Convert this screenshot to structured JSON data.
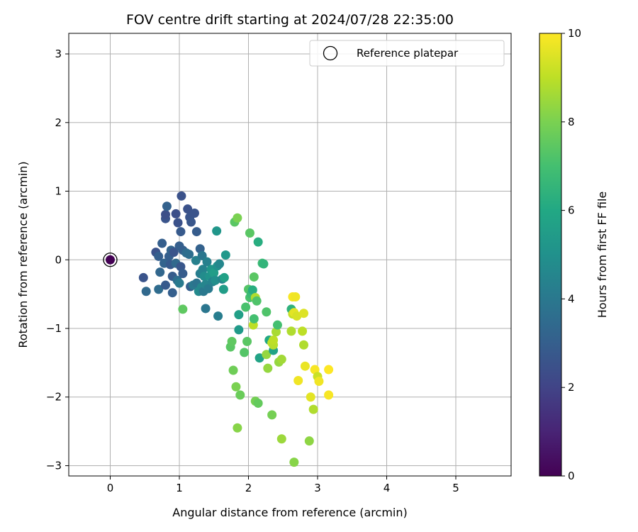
{
  "chart_data": {
    "type": "scatter",
    "title": "FOV centre drift starting at 2024/07/28 22:35:00",
    "xlabel": "Angular distance from reference (arcmin)",
    "ylabel": "Rotation from reference (arcmin)",
    "xlim": [
      -0.6,
      5.8
    ],
    "ylim": [
      -3.15,
      3.3
    ],
    "xticks": [
      0,
      1,
      2,
      3,
      4,
      5
    ],
    "xtick_labels": [
      "0",
      "1",
      "2",
      "3",
      "4",
      "5"
    ],
    "yticks": [
      -3,
      -2,
      -1,
      0,
      1,
      2,
      3
    ],
    "ytick_labels": [
      "−3",
      "−2",
      "−1",
      "0",
      "1",
      "2",
      "3"
    ],
    "grid": true,
    "colormap": "viridis",
    "colorbar": {
      "label": "Hours from first FF file",
      "range": [
        0,
        10
      ],
      "ticks": [
        0,
        2,
        4,
        6,
        8,
        10
      ],
      "tick_labels": [
        "0",
        "2",
        "4",
        "6",
        "8",
        "10"
      ]
    },
    "legend": {
      "placement": "top-right",
      "entries": [
        {
          "label": "Reference platepar",
          "marker": "open-circle"
        }
      ]
    },
    "reference_point": {
      "x": 0,
      "y": 0,
      "c": 0
    },
    "points": [
      {
        "x": 0.48,
        "y": -0.26,
        "c": 2.6
      },
      {
        "x": 0.52,
        "y": -0.46,
        "c": 3.4
      },
      {
        "x": 0.66,
        "y": 0.11,
        "c": 2.5
      },
      {
        "x": 0.7,
        "y": 0.05,
        "c": 3.0
      },
      {
        "x": 0.72,
        "y": -0.18,
        "c": 3.3
      },
      {
        "x": 0.7,
        "y": -0.43,
        "c": 3.5
      },
      {
        "x": 0.75,
        "y": 0.24,
        "c": 3.0
      },
      {
        "x": 0.78,
        "y": -0.05,
        "c": 3.2
      },
      {
        "x": 0.8,
        "y": -0.37,
        "c": 2.8
      },
      {
        "x": 0.8,
        "y": 0.6,
        "c": 2.6
      },
      {
        "x": 0.8,
        "y": 0.66,
        "c": 2.4
      },
      {
        "x": 0.82,
        "y": 0.78,
        "c": 3.1
      },
      {
        "x": 0.85,
        "y": 0.05,
        "c": 3.0
      },
      {
        "x": 0.87,
        "y": -0.07,
        "c": 2.8
      },
      {
        "x": 0.88,
        "y": 0.14,
        "c": 3.2
      },
      {
        "x": 0.9,
        "y": -0.24,
        "c": 2.9
      },
      {
        "x": 0.9,
        "y": -0.48,
        "c": 3.0
      },
      {
        "x": 0.92,
        "y": 0.11,
        "c": 2.6
      },
      {
        "x": 0.95,
        "y": -0.05,
        "c": 3.4
      },
      {
        "x": 0.95,
        "y": 0.67,
        "c": 2.4
      },
      {
        "x": 0.97,
        "y": -0.3,
        "c": 3.6
      },
      {
        "x": 0.98,
        "y": 0.54,
        "c": 2.5
      },
      {
        "x": 1.0,
        "y": 0.2,
        "c": 3.0
      },
      {
        "x": 1.0,
        "y": -0.34,
        "c": 4.1
      },
      {
        "x": 1.02,
        "y": -0.1,
        "c": 2.7
      },
      {
        "x": 1.02,
        "y": 0.41,
        "c": 2.8
      },
      {
        "x": 1.03,
        "y": 0.93,
        "c": 2.5
      },
      {
        "x": 1.05,
        "y": -0.2,
        "c": 2.9
      },
      {
        "x": 1.05,
        "y": 0.14,
        "c": 3.0
      },
      {
        "x": 1.05,
        "y": -0.72,
        "c": 7.5
      },
      {
        "x": 1.1,
        "y": 0.1,
        "c": 3.5
      },
      {
        "x": 1.12,
        "y": 0.74,
        "c": 2.5
      },
      {
        "x": 1.14,
        "y": 0.08,
        "c": 3.6
      },
      {
        "x": 1.15,
        "y": 0.62,
        "c": 2.6
      },
      {
        "x": 1.16,
        "y": -0.39,
        "c": 3.0
      },
      {
        "x": 1.17,
        "y": 0.55,
        "c": 2.7
      },
      {
        "x": 1.2,
        "y": -0.37,
        "c": 4.0
      },
      {
        "x": 1.22,
        "y": 0.68,
        "c": 2.6
      },
      {
        "x": 1.24,
        "y": -0.01,
        "c": 4.3
      },
      {
        "x": 1.25,
        "y": -0.34,
        "c": 3.8
      },
      {
        "x": 1.25,
        "y": 0.41,
        "c": 2.9
      },
      {
        "x": 1.28,
        "y": -0.46,
        "c": 4.7
      },
      {
        "x": 1.3,
        "y": 0.16,
        "c": 3.1
      },
      {
        "x": 1.3,
        "y": -0.2,
        "c": 4.2
      },
      {
        "x": 1.32,
        "y": -0.4,
        "c": 4.6
      },
      {
        "x": 1.33,
        "y": 0.06,
        "c": 3.9
      },
      {
        "x": 1.34,
        "y": -0.14,
        "c": 4.4
      },
      {
        "x": 1.35,
        "y": -0.46,
        "c": 4.0
      },
      {
        "x": 1.36,
        "y": -0.24,
        "c": 4.8
      },
      {
        "x": 1.38,
        "y": -0.71,
        "c": 3.9
      },
      {
        "x": 1.38,
        "y": -0.36,
        "c": 4.5
      },
      {
        "x": 1.4,
        "y": -0.03,
        "c": 4.3
      },
      {
        "x": 1.42,
        "y": -0.42,
        "c": 4.1
      },
      {
        "x": 1.44,
        "y": -0.24,
        "c": 5.1
      },
      {
        "x": 1.46,
        "y": -0.14,
        "c": 5.2
      },
      {
        "x": 1.48,
        "y": -0.32,
        "c": 4.4
      },
      {
        "x": 1.5,
        "y": -0.19,
        "c": 5.5
      },
      {
        "x": 1.52,
        "y": -0.3,
        "c": 4.9
      },
      {
        "x": 1.54,
        "y": 0.42,
        "c": 5.2
      },
      {
        "x": 1.55,
        "y": -0.09,
        "c": 5.0
      },
      {
        "x": 1.56,
        "y": -0.82,
        "c": 4.2
      },
      {
        "x": 1.58,
        "y": -0.06,
        "c": 4.6
      },
      {
        "x": 1.62,
        "y": -0.28,
        "c": 4.5
      },
      {
        "x": 1.64,
        "y": -0.43,
        "c": 5.5
      },
      {
        "x": 1.65,
        "y": -0.26,
        "c": 5.7
      },
      {
        "x": 1.67,
        "y": 0.07,
        "c": 5.3
      },
      {
        "x": 1.74,
        "y": -1.27,
        "c": 7.4
      },
      {
        "x": 1.76,
        "y": -1.19,
        "c": 7.5
      },
      {
        "x": 1.78,
        "y": -1.61,
        "c": 7.8
      },
      {
        "x": 1.8,
        "y": 0.55,
        "c": 7.4
      },
      {
        "x": 1.82,
        "y": -1.85,
        "c": 8.0
      },
      {
        "x": 1.84,
        "y": -2.45,
        "c": 8.2
      },
      {
        "x": 1.84,
        "y": 0.61,
        "c": 8.0
      },
      {
        "x": 1.86,
        "y": -0.8,
        "c": 5.6
      },
      {
        "x": 1.86,
        "y": -1.02,
        "c": 5.4
      },
      {
        "x": 1.88,
        "y": -1.97,
        "c": 7.7
      },
      {
        "x": 1.94,
        "y": -1.35,
        "c": 7.3
      },
      {
        "x": 1.96,
        "y": -0.69,
        "c": 7.1
      },
      {
        "x": 1.98,
        "y": -1.19,
        "c": 7.4
      },
      {
        "x": 2.0,
        "y": -0.43,
        "c": 7.3
      },
      {
        "x": 2.02,
        "y": 0.39,
        "c": 7.4
      },
      {
        "x": 2.02,
        "y": -0.55,
        "c": 7.1
      },
      {
        "x": 2.04,
        "y": -0.5,
        "c": 6.8
      },
      {
        "x": 2.06,
        "y": -0.44,
        "c": 6.2
      },
      {
        "x": 2.07,
        "y": -0.95,
        "c": 9.0
      },
      {
        "x": 2.08,
        "y": -0.86,
        "c": 7.0
      },
      {
        "x": 2.08,
        "y": -0.25,
        "c": 7.4
      },
      {
        "x": 2.1,
        "y": -2.06,
        "c": 7.9
      },
      {
        "x": 2.1,
        "y": -0.55,
        "c": 8.8
      },
      {
        "x": 2.12,
        "y": -0.6,
        "c": 7.2
      },
      {
        "x": 2.14,
        "y": -2.09,
        "c": 7.6
      },
      {
        "x": 2.14,
        "y": 0.26,
        "c": 6.2
      },
      {
        "x": 2.16,
        "y": -1.43,
        "c": 5.8
      },
      {
        "x": 2.2,
        "y": -0.05,
        "c": 6.8
      },
      {
        "x": 2.22,
        "y": -0.06,
        "c": 6.5
      },
      {
        "x": 2.26,
        "y": -0.76,
        "c": 7.2
      },
      {
        "x": 2.26,
        "y": -1.38,
        "c": 8.4
      },
      {
        "x": 2.28,
        "y": -1.58,
        "c": 8.4
      },
      {
        "x": 2.3,
        "y": -1.17,
        "c": 6.0
      },
      {
        "x": 2.34,
        "y": -1.21,
        "c": 9.1
      },
      {
        "x": 2.34,
        "y": -2.26,
        "c": 7.9
      },
      {
        "x": 2.36,
        "y": -1.32,
        "c": 5.8
      },
      {
        "x": 2.36,
        "y": -1.24,
        "c": 8.9
      },
      {
        "x": 2.36,
        "y": -1.17,
        "c": 9.0
      },
      {
        "x": 2.4,
        "y": -1.05,
        "c": 8.7
      },
      {
        "x": 2.42,
        "y": -0.95,
        "c": 7.0
      },
      {
        "x": 2.44,
        "y": -1.49,
        "c": 8.4
      },
      {
        "x": 2.48,
        "y": -1.45,
        "c": 8.6
      },
      {
        "x": 2.48,
        "y": -2.61,
        "c": 8.5
      },
      {
        "x": 2.62,
        "y": -0.72,
        "c": 6.4
      },
      {
        "x": 2.62,
        "y": -1.04,
        "c": 8.8
      },
      {
        "x": 2.64,
        "y": -0.54,
        "c": 9.9
      },
      {
        "x": 2.64,
        "y": -0.79,
        "c": 9.1
      },
      {
        "x": 2.66,
        "y": -0.77,
        "c": 9.6
      },
      {
        "x": 2.68,
        "y": -0.54,
        "c": 9.8
      },
      {
        "x": 2.7,
        "y": -0.82,
        "c": 9.4
      },
      {
        "x": 2.72,
        "y": -1.76,
        "c": 9.8
      },
      {
        "x": 2.78,
        "y": -1.04,
        "c": 9.0
      },
      {
        "x": 2.8,
        "y": -0.78,
        "c": 9.5
      },
      {
        "x": 2.8,
        "y": -1.24,
        "c": 8.8
      },
      {
        "x": 2.82,
        "y": -1.55,
        "c": 9.7
      },
      {
        "x": 2.66,
        "y": -2.95,
        "c": 8.2
      },
      {
        "x": 2.88,
        "y": -2.64,
        "c": 8.3
      },
      {
        "x": 2.9,
        "y": -2.0,
        "c": 9.6
      },
      {
        "x": 2.94,
        "y": -2.18,
        "c": 8.8
      },
      {
        "x": 2.96,
        "y": -1.6,
        "c": 9.9
      },
      {
        "x": 3.0,
        "y": -1.7,
        "c": 9.2
      },
      {
        "x": 3.02,
        "y": -1.77,
        "c": 9.8
      },
      {
        "x": 3.16,
        "y": -1.97,
        "c": 9.9
      },
      {
        "x": 3.16,
        "y": -1.6,
        "c": 10.0
      }
    ]
  }
}
